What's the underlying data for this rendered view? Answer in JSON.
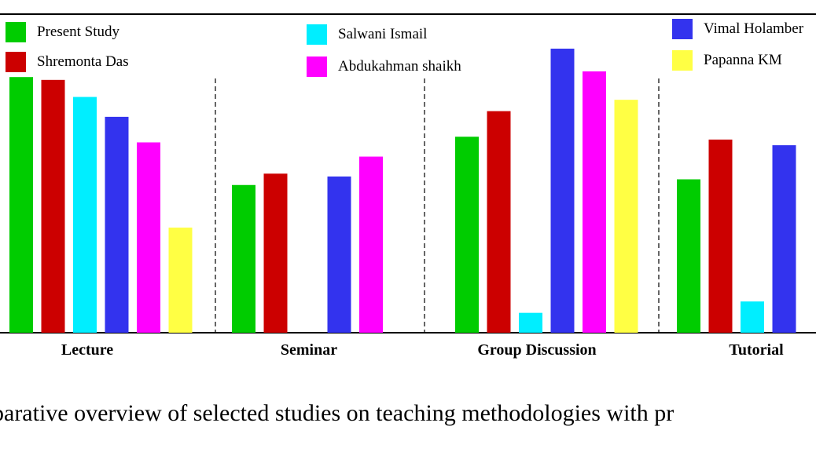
{
  "chart_data": {
    "type": "bar",
    "title": "",
    "xlabel": "",
    "ylabel": "",
    "ylim": [
      0,
      100
    ],
    "grid": false,
    "legend_position": "top",
    "categories": [
      "Lecture",
      "Seminar",
      "Group Discussion",
      "Tutorial"
    ],
    "series": [
      {
        "name": "Present Study",
        "color": "#00cc00",
        "values": [
          90,
          52,
          69,
          54
        ]
      },
      {
        "name": "Shremonta Das",
        "color": "#cc0000",
        "values": [
          89,
          56,
          78,
          68
        ]
      },
      {
        "name": "Salwani Ismail",
        "color": "#00eeff",
        "values": [
          83,
          null,
          7,
          11
        ]
      },
      {
        "name": "Vimal Holamber",
        "color": "#3333ee",
        "values": [
          76,
          55,
          100,
          66
        ]
      },
      {
        "name": "Abdukahman shaikh",
        "color": "#ff00ff",
        "values": [
          67,
          62,
          92,
          null
        ]
      },
      {
        "name": "Papanna KM",
        "color": "#ffff44",
        "values": [
          37,
          null,
          82,
          null
        ]
      }
    ]
  },
  "caption": "parative overview of selected studies on teaching methodologies with pr"
}
